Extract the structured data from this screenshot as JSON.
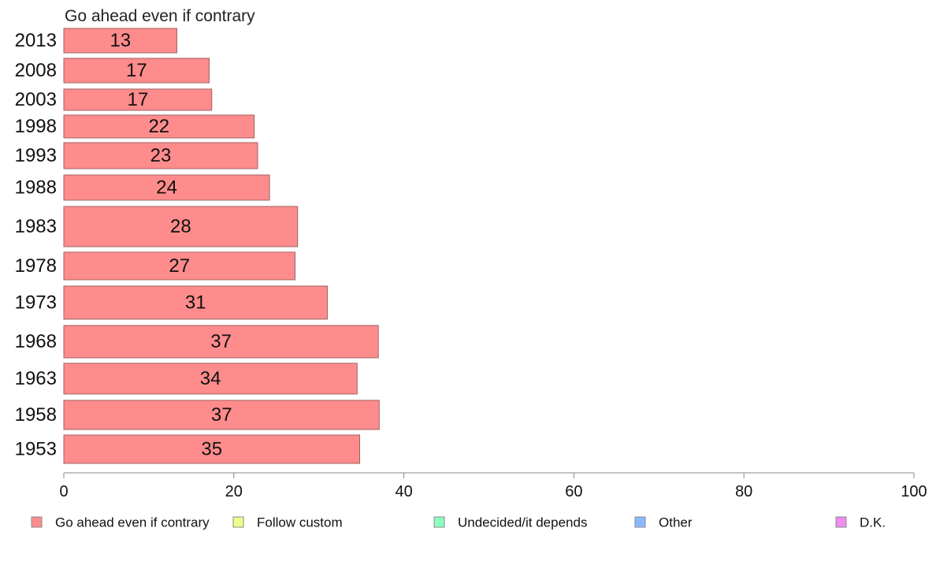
{
  "chart_data": {
    "type": "bar",
    "orientation": "horizontal",
    "title": "Go ahead even if contrary",
    "categories": [
      "2013",
      "2008",
      "2003",
      "1998",
      "1993",
      "1988",
      "1983",
      "1978",
      "1973",
      "1968",
      "1963",
      "1958",
      "1953"
    ],
    "series": [
      {
        "name": "Go ahead even if contrary",
        "values": [
          13.3,
          17.1,
          17.4,
          22.4,
          22.8,
          24.2,
          27.5,
          27.2,
          31.0,
          37.0,
          34.5,
          37.1,
          34.8
        ],
        "labels": [
          "13",
          "17",
          "17",
          "22",
          "23",
          "24",
          "28",
          "27",
          "31",
          "37",
          "34",
          "37",
          "35"
        ]
      }
    ],
    "xlim": [
      0,
      100
    ],
    "xticks": [
      0,
      20,
      40,
      60,
      80,
      100
    ],
    "grid": false,
    "legend": {
      "position": "bottom",
      "entries": [
        {
          "label": "Go ahead even if contrary",
          "color": "#ff8c8c"
        },
        {
          "label": "Follow custom",
          "color": "#f0ff8c"
        },
        {
          "label": "Undecided/it depends",
          "color": "#8cffc0"
        },
        {
          "label": "Other",
          "color": "#8cb8ff"
        },
        {
          "label": "D.K.",
          "color": "#f08cf0"
        }
      ]
    },
    "colors": {
      "bar_fill": "#ff8c8c",
      "bar_stroke": "#a06060",
      "axis": "#888888"
    }
  }
}
